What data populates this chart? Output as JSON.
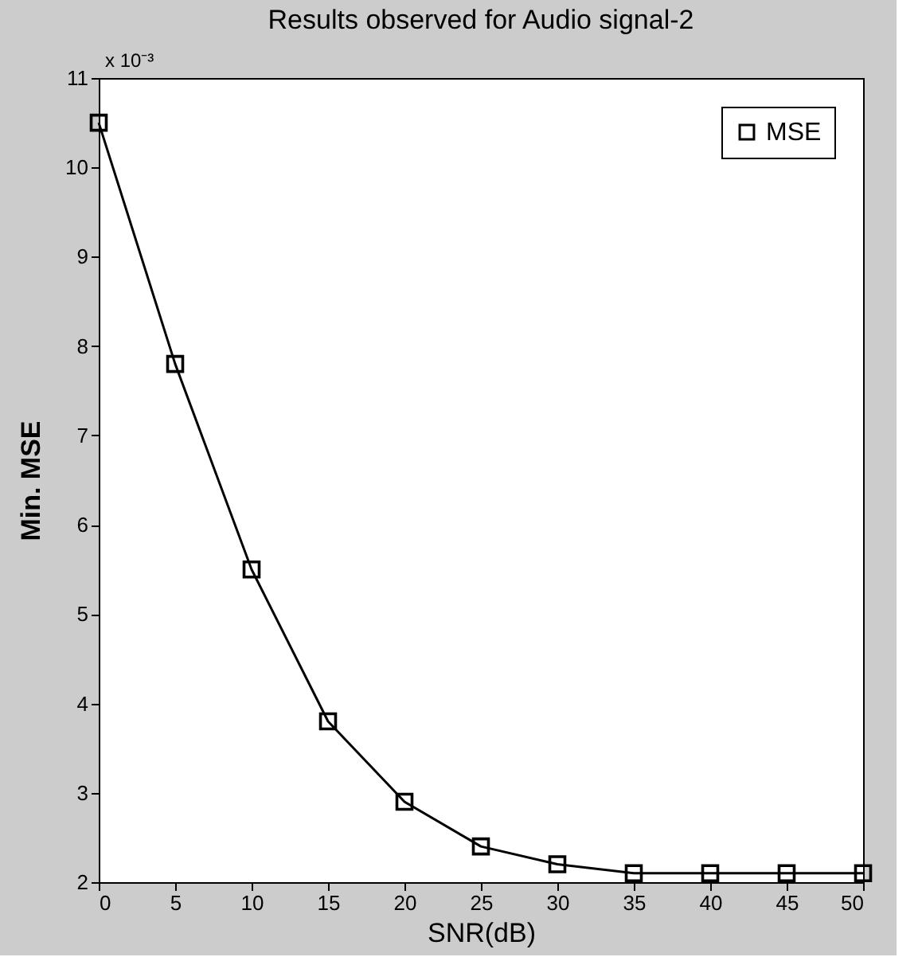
{
  "chart_data": {
    "type": "line",
    "title": "Results observed for Audio signal-2",
    "xlabel": "SNR(dB)",
    "ylabel": "Min. MSE",
    "annotations": [
      "x 10⁻³"
    ],
    "x": [
      0,
      5,
      10,
      15,
      20,
      25,
      30,
      35,
      40,
      45,
      50
    ],
    "series": [
      {
        "name": "MSE",
        "color": "#000000",
        "values": [
          10.5,
          7.8,
          5.5,
          3.8,
          2.9,
          2.4,
          2.2,
          2.1,
          2.1,
          2.1,
          2.1
        ]
      }
    ],
    "xlim": [
      0,
      50
    ],
    "xticks": [
      0,
      5,
      10,
      15,
      20,
      25,
      30,
      35,
      40,
      45,
      50
    ],
    "ylim": [
      2,
      11
    ],
    "yticks": [
      2,
      3,
      4,
      5,
      6,
      7,
      8,
      9,
      10,
      11
    ],
    "grid": false,
    "legend": "top right",
    "marker": "square",
    "line_style": "solid"
  }
}
